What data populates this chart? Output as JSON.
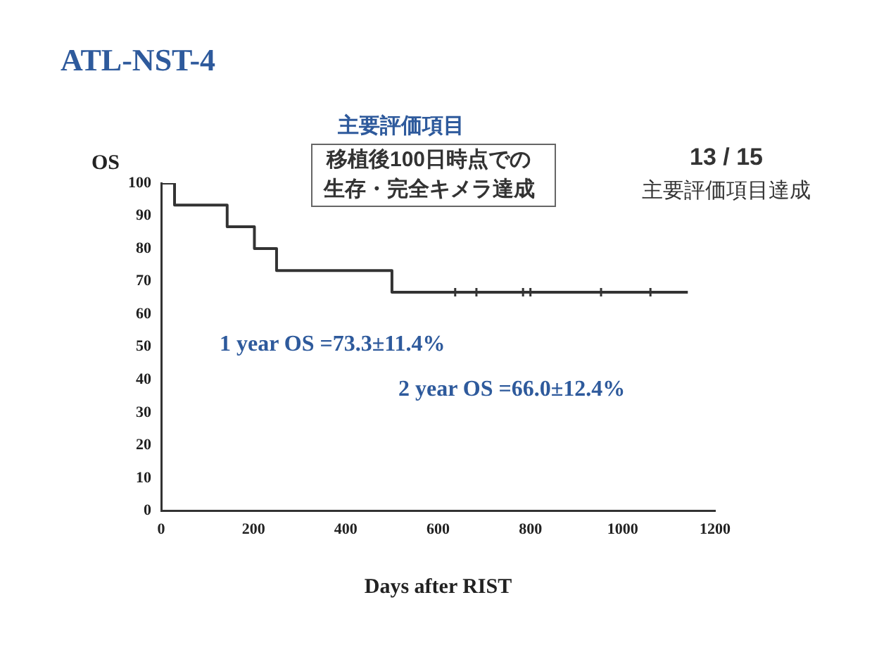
{
  "chart_data": {
    "type": "step",
    "title": "ATL-NST-4",
    "ylabel": "OS",
    "xlabel": "Days after RIST",
    "annotations": [
      "主要評価項目",
      "移植後100日時点での",
      "生存・完全キメラ達成",
      "13 / 15",
      "主要評価項目達成",
      "1 year OS =73.3±11.4%",
      "2 year OS =66.0±12.4%"
    ],
    "series": [
      {
        "color": "#333333",
        "x": [
          0,
          29,
          143,
          202,
          250,
          500,
          1141
        ],
        "values": [
          100,
          93.3,
          86.7,
          80,
          73.3,
          66.7,
          66.7
        ]
      },
      {
        "type": "scatter",
        "marker": "cross",
        "color": "#333333",
        "x": [
          637,
          683,
          784,
          800,
          953,
          1060
        ],
        "values": [
          66.7,
          66.7,
          66.7,
          66.7,
          66.7,
          66.7
        ]
      }
    ],
    "xlim": [
      0,
      1200
    ],
    "xticks": [
      0,
      200,
      400,
      600,
      800,
      1000,
      1200
    ],
    "ylim": [
      0,
      100
    ],
    "yticks": [
      0,
      10,
      20,
      30,
      40,
      50,
      60,
      70,
      80,
      90,
      100
    ],
    "grid": false,
    "legend": false
  }
}
